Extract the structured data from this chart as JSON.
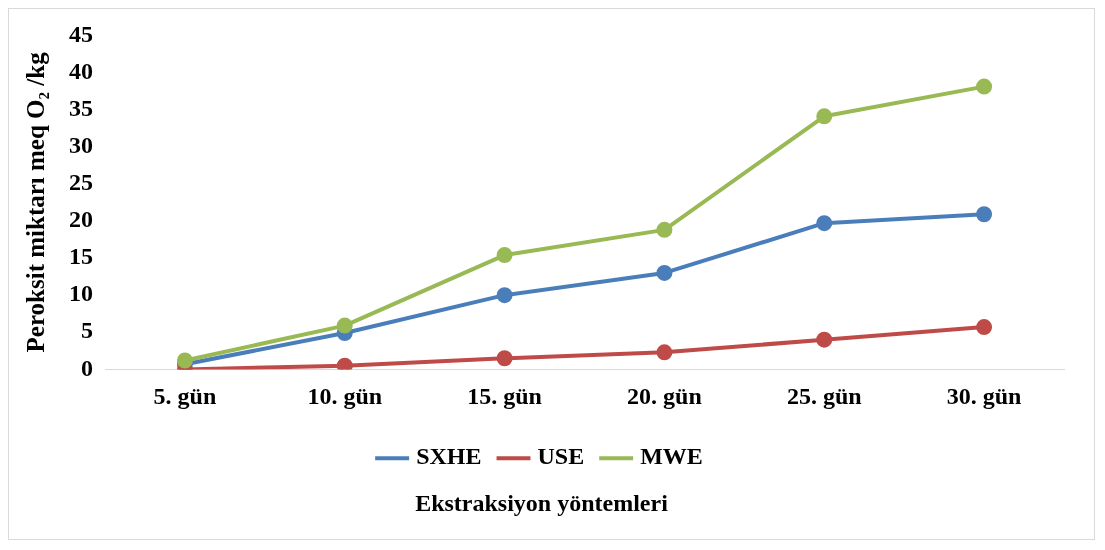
{
  "chart_data": {
    "type": "line",
    "xlabel": "Ekstraksiyon yöntemleri",
    "ylabel": "Peroksit miktarı meq O₂ /kg",
    "categories": [
      "5. gün",
      "10. gün",
      "15. gün",
      "20. gün",
      "25. gün",
      "30. gün"
    ],
    "series": [
      {
        "name": "SXHE",
        "color": "#4a7ebb",
        "values": [
          0.7,
          4.9,
          10.0,
          13.0,
          19.7,
          20.9
        ]
      },
      {
        "name": "USE",
        "color": "#be4b48",
        "values": [
          0,
          0.5,
          1.5,
          2.3,
          4.0,
          5.7
        ]
      },
      {
        "name": "MWE",
        "color": "#98b954",
        "values": [
          1.2,
          5.9,
          15.4,
          18.8,
          34.1,
          38.1
        ]
      }
    ],
    "ylim": [
      0,
      45
    ],
    "yticks": [
      0,
      5,
      10,
      15,
      20,
      25,
      30,
      35,
      40,
      45
    ],
    "grid": false,
    "legend": "bottom",
    "marker": "circle",
    "line_style": "solid"
  }
}
